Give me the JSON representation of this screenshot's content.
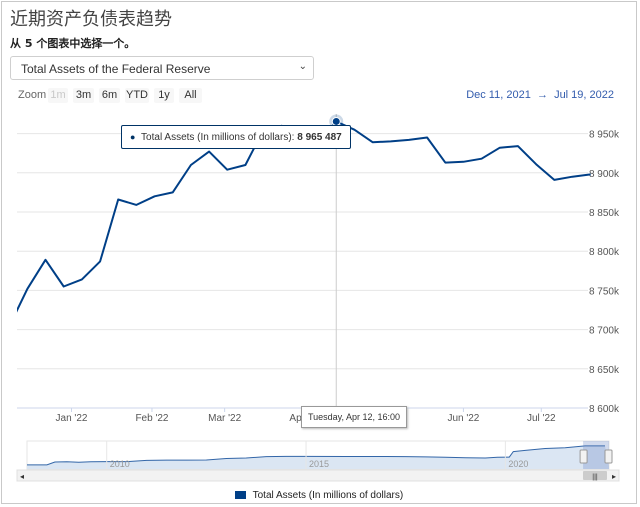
{
  "page": {
    "title": "近期资产负债表趋势",
    "subtitle": "从 5 个图表中选择一个。",
    "select": {
      "selected": "Total Assets of the Federal Reserve",
      "chevron": "⌄"
    }
  },
  "zoom": {
    "label": "Zoom",
    "buttons": [
      {
        "label": "1m",
        "enabled": false
      },
      {
        "label": "3m",
        "enabled": true
      },
      {
        "label": "6m",
        "enabled": true
      },
      {
        "label": "YTD",
        "enabled": true
      },
      {
        "label": "1y",
        "enabled": true
      },
      {
        "label": "All",
        "enabled": true
      }
    ]
  },
  "range": {
    "from": "Dec 11, 2021",
    "sep": "→",
    "to": "Jul 19, 2022"
  },
  "tooltip": {
    "series": "Total Assets (In millions of dollars)",
    "value": "8 965 487",
    "date": "Tuesday, Apr 12, 16:00"
  },
  "navigator": {
    "years": [
      "2010",
      "2015",
      "2020"
    ],
    "scroll_left": "◂",
    "scroll_right": "▸",
    "grip": "|||"
  },
  "colors": {
    "line": "#003f87",
    "grid": "#e6e6e6",
    "crosshair": "#cccccc",
    "navigator_fill": "#dbe6f3"
  },
  "chart_data": {
    "type": "line",
    "title": "",
    "ylabel": "",
    "ylim": [
      8600000,
      8975000
    ],
    "y_ticks": [
      8600000,
      8650000,
      8700000,
      8750000,
      8800000,
      8850000,
      8900000,
      8950000
    ],
    "y_tick_labels": [
      "8 600k",
      "8 650k",
      "8 700k",
      "8 750k",
      "8 800k",
      "8 850k",
      "8 900k",
      "8 950k"
    ],
    "x_ticks": [
      "2022-01-01",
      "2022-02-01",
      "2022-03-01",
      "2022-04-01",
      "2022-05-01",
      "2022-06-01",
      "2022-07-01"
    ],
    "x_tick_labels": [
      "Jan '22",
      "Feb '22",
      "Mar '22",
      "Apr '22",
      "May '22",
      "Jun '22",
      "Jul '22"
    ],
    "xlim": [
      "2021-12-11",
      "2022-07-19"
    ],
    "grid": true,
    "legend_position": "bottom",
    "series": [
      {
        "name": "Total Assets (In millions of dollars)",
        "x": [
          "2021-12-08",
          "2021-12-15",
          "2021-12-22",
          "2021-12-29",
          "2022-01-05",
          "2022-01-12",
          "2022-01-19",
          "2022-01-26",
          "2022-02-02",
          "2022-02-09",
          "2022-02-16",
          "2022-02-23",
          "2022-03-02",
          "2022-03-09",
          "2022-03-16",
          "2022-03-23",
          "2022-03-30",
          "2022-04-06",
          "2022-04-13",
          "2022-04-20",
          "2022-04-27",
          "2022-05-04",
          "2022-05-11",
          "2022-05-18",
          "2022-05-25",
          "2022-06-01",
          "2022-06-08",
          "2022-06-15",
          "2022-06-22",
          "2022-06-29",
          "2022-07-06",
          "2022-07-13",
          "2022-07-20"
        ],
        "values": [
          8704000,
          8752000,
          8789000,
          8755000,
          8764000,
          8787000,
          8866000,
          8859000,
          8870000,
          8875000,
          8910000,
          8927000,
          8904000,
          8910000,
          8955000,
          8960000,
          8937000,
          8937000,
          8965487,
          8955000,
          8939000,
          8940000,
          8942000,
          8945000,
          8913000,
          8914000,
          8918000,
          8932000,
          8934000,
          8911000,
          8891000,
          8895000,
          8898000
        ]
      }
    ],
    "navigator": {
      "x_years": [
        2008,
        2008.5,
        2008.7,
        2009,
        2009.3,
        2009.6,
        2010,
        2010.5,
        2011,
        2011.5,
        2012,
        2012.5,
        2013,
        2013.5,
        2014,
        2014.5,
        2015,
        2016,
        2017,
        2017.5,
        2018,
        2018.5,
        2019,
        2019.5,
        2019.8,
        2020.1,
        2020.2,
        2020.5,
        2021,
        2021.5,
        2022,
        2022.5
      ],
      "values": [
        900000,
        900000,
        2100000,
        2200000,
        2000000,
        2200000,
        2300000,
        2300000,
        2800000,
        2900000,
        2900000,
        2950000,
        3600000,
        3800000,
        4400000,
        4500000,
        4500000,
        4450000,
        4450000,
        4400000,
        4250000,
        4100000,
        3900000,
        3800000,
        4100000,
        4200000,
        6500000,
        7000000,
        7800000,
        8100000,
        8900000,
        8900000
      ]
    }
  }
}
